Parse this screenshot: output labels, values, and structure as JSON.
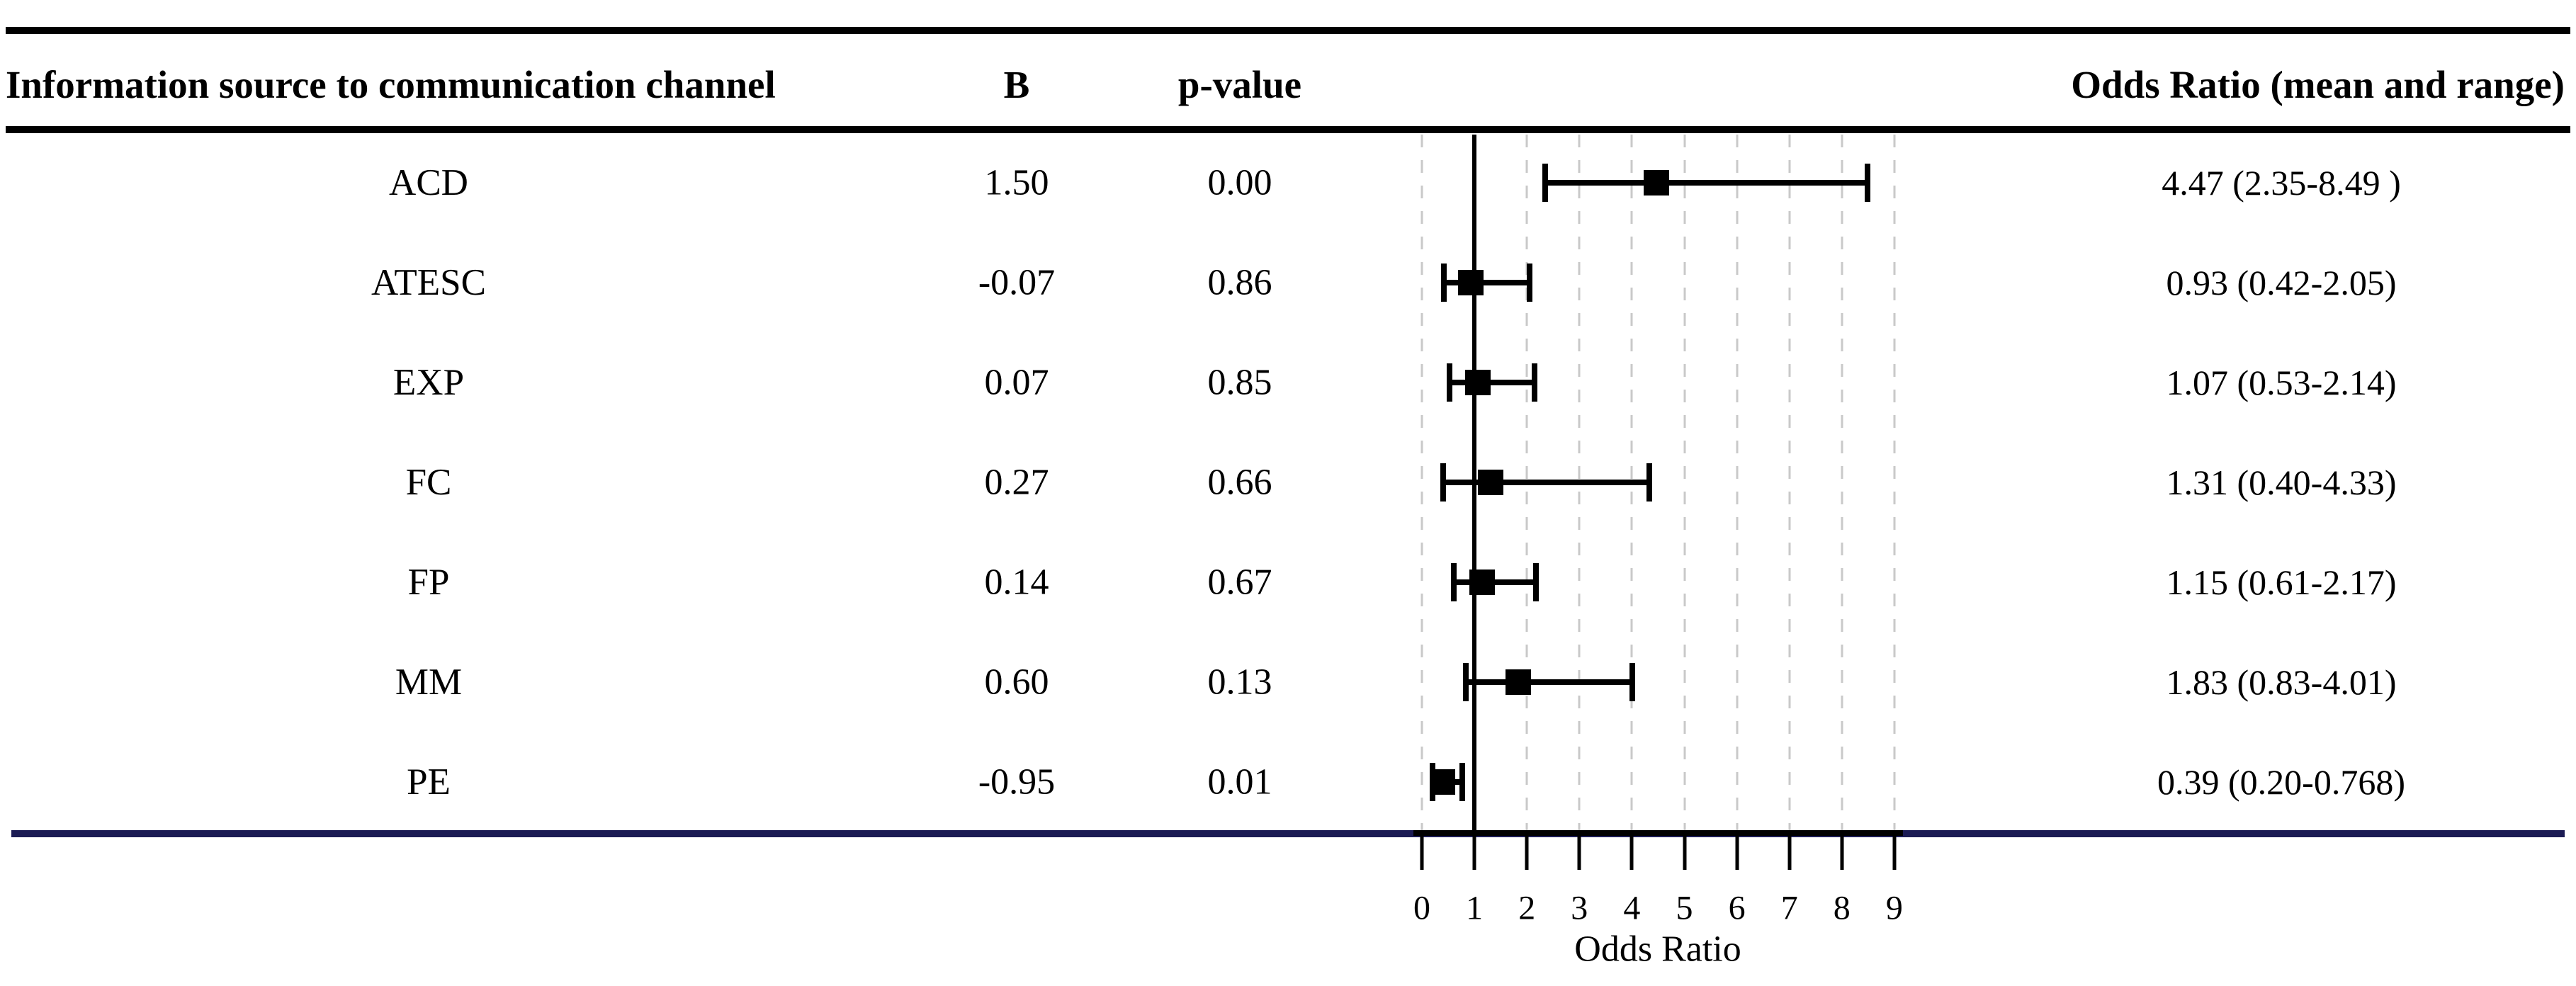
{
  "header": {
    "col_source": "Information source to communication channel",
    "col_b": "B",
    "col_p": "p-value",
    "col_or": "Odds Ratio (mean and range)"
  },
  "chart_data": {
    "type": "scatter",
    "subtype": "forest-plot",
    "title": "",
    "xlabel": "Odds Ratio",
    "ylabel": "",
    "xlim": [
      0,
      9
    ],
    "x_ticks": [
      "0",
      "1",
      "2",
      "3",
      "4",
      "5",
      "6",
      "7",
      "8",
      "9"
    ],
    "reference_line_x": 1,
    "grid": "vertical-dashed-at-integers",
    "legend_position": "none",
    "rows": [
      {
        "label": "ACD",
        "B": "1.50",
        "p_value": "0.00",
        "or_mean": 4.47,
        "or_low": 2.35,
        "or_high": 8.49,
        "or_text": "4.47 (2.35-8.49 )"
      },
      {
        "label": "ATESC",
        "B": "-0.07",
        "p_value": "0.86",
        "or_mean": 0.93,
        "or_low": 0.42,
        "or_high": 2.05,
        "or_text": "0.93 (0.42-2.05)"
      },
      {
        "label": "EXP",
        "B": "0.07",
        "p_value": "0.85",
        "or_mean": 1.07,
        "or_low": 0.53,
        "or_high": 2.14,
        "or_text": "1.07 (0.53-2.14)"
      },
      {
        "label": "FC",
        "B": "0.27",
        "p_value": "0.66",
        "or_mean": 1.31,
        "or_low": 0.4,
        "or_high": 4.33,
        "or_text": "1.31 (0.40-4.33)"
      },
      {
        "label": "FP",
        "B": "0.14",
        "p_value": "0.67",
        "or_mean": 1.15,
        "or_low": 0.61,
        "or_high": 2.17,
        "or_text": "1.15 (0.61-2.17)"
      },
      {
        "label": "MM",
        "B": "0.60",
        "p_value": "0.13",
        "or_mean": 1.83,
        "or_low": 0.83,
        "or_high": 4.01,
        "or_text": "1.83 (0.83-4.01)"
      },
      {
        "label": "PE",
        "B": "-0.95",
        "p_value": "0.01",
        "or_mean": 0.39,
        "or_low": 0.2,
        "or_high": 0.768,
        "or_text": "0.39 (0.20-0.768)"
      }
    ]
  },
  "colors": {
    "rule_black": "#000000",
    "rule_navy": "#1b1b54",
    "gridline": "#c9c9c9",
    "marker": "#000000",
    "background": "#ffffff"
  }
}
